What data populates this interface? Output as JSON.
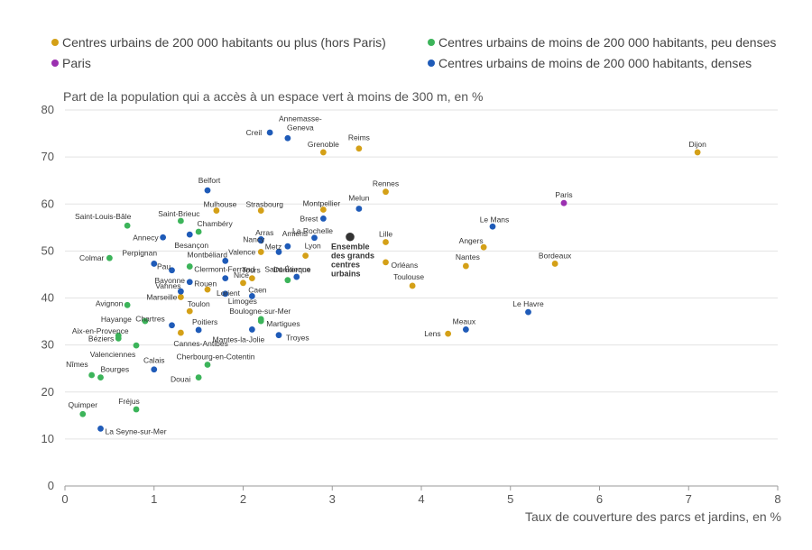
{
  "chart_data": {
    "type": "scatter",
    "ylabel": "Part de la population qui a accès à un espace vert à moins de 300 m, en %",
    "xlabel": "Taux de couverture des parcs et jardins, en %",
    "xlim": [
      0,
      8
    ],
    "ylim": [
      0,
      80
    ],
    "xticks": [
      "0",
      "1",
      "2",
      "3",
      "4",
      "5",
      "6",
      "7",
      "8"
    ],
    "yticks": [
      "0",
      "10",
      "20",
      "30",
      "40",
      "50",
      "60",
      "70",
      "80"
    ],
    "grid": true,
    "legend_position": "top",
    "colors": {
      "gros": "#d4a017",
      "peu_denses": "#3cb45a",
      "paris": "#9b30b0",
      "denses": "#1f5bb8",
      "ensemble": "#333333"
    },
    "series": [
      {
        "key": "gros",
        "name": "Centres urbains de 200 000 habitants ou plus (hors Paris)",
        "points": [
          {
            "label": "Dijon",
            "x": 7.1,
            "y": 71
          },
          {
            "label": "Grenoble",
            "x": 2.9,
            "y": 71
          },
          {
            "label": "Reims",
            "x": 3.3,
            "y": 71.8
          },
          {
            "label": "Rennes",
            "x": 3.6,
            "y": 62.6
          },
          {
            "label": "Strasbourg",
            "x": 2.2,
            "y": 58.6
          },
          {
            "label": "Mulhouse",
            "x": 1.7,
            "y": 58.6
          },
          {
            "label": "Montpellier",
            "x": 2.9,
            "y": 58.8
          },
          {
            "label": "Lille",
            "x": 3.6,
            "y": 51.9
          },
          {
            "label": "Angers",
            "x": 4.7,
            "y": 50.8
          },
          {
            "label": "Valence",
            "x": 2.2,
            "y": 49.8
          },
          {
            "label": "Lyon",
            "x": 2.7,
            "y": 49
          },
          {
            "label": "Orléans",
            "x": 3.6,
            "y": 47.6
          },
          {
            "label": "Nantes",
            "x": 4.5,
            "y": 46.8
          },
          {
            "label": "Bordeaux",
            "x": 5.5,
            "y": 47.3
          },
          {
            "label": "Tours",
            "x": 2.1,
            "y": 44.2
          },
          {
            "label": "Nice",
            "x": 2.0,
            "y": 43.2
          },
          {
            "label": "Toulouse",
            "x": 3.9,
            "y": 42.6
          },
          {
            "label": "Lorient",
            "x": 1.6,
            "y": 41.8
          },
          {
            "label": "Marseille",
            "x": 1.3,
            "y": 40.2
          },
          {
            "label": "Toulon",
            "x": 1.4,
            "y": 37.2
          },
          {
            "label": "Lens",
            "x": 4.3,
            "y": 32.4
          },
          {
            "label": "Cannes-Antibes",
            "x": 1.3,
            "y": 32.6
          }
        ]
      },
      {
        "key": "peu_denses",
        "name": "Centres urbains de moins de 200 000 habitants, peu denses",
        "points": [
          {
            "label": "Saint-Brieuc",
            "x": 1.3,
            "y": 56.4
          },
          {
            "label": "Saint-Louis-Bâle",
            "x": 0.7,
            "y": 55.4
          },
          {
            "label": "Chambéry",
            "x": 1.5,
            "y": 54.1
          },
          {
            "label": "Colmar",
            "x": 0.5,
            "y": 48.5
          },
          {
            "label": "Clermont-Ferrand",
            "x": 1.4,
            "y": 46.7
          },
          {
            "label": "Saint-Étienne",
            "x": 2.5,
            "y": 43.8
          },
          {
            "label": "Avignon",
            "x": 0.7,
            "y": 38.5
          },
          {
            "label": "Hayange",
            "x": 0.9,
            "y": 35.1
          },
          {
            "label": "Boulogne-sur-Mer",
            "x": 2.2,
            "y": 35.5
          },
          {
            "label": "Martigues",
            "x": 2.2,
            "y": 35.1
          },
          {
            "label": "Aix-en-Provence",
            "x": 0.6,
            "y": 32
          },
          {
            "label": "Béziers",
            "x": 0.6,
            "y": 31.4
          },
          {
            "label": "Valenciennes",
            "x": 0.8,
            "y": 29.9
          },
          {
            "label": "Cherbourg-en-Cotentin",
            "x": 1.6,
            "y": 25.8
          },
          {
            "label": "Nîmes",
            "x": 0.3,
            "y": 23.6
          },
          {
            "label": "Bourges",
            "x": 0.4,
            "y": 23.1
          },
          {
            "label": "Douai",
            "x": 1.5,
            "y": 23.1
          },
          {
            "label": "Fréjus",
            "x": 0.8,
            "y": 16.3
          },
          {
            "label": "Quimper",
            "x": 0.2,
            "y": 15.3
          }
        ]
      },
      {
        "key": "paris",
        "name": "Paris",
        "points": [
          {
            "label": "Paris",
            "x": 5.6,
            "y": 60.2
          }
        ]
      },
      {
        "key": "denses",
        "name": "Centres urbains de moins de 200 000 habitants, denses",
        "points": [
          {
            "label": "Creil",
            "x": 2.3,
            "y": 75.2
          },
          {
            "label": "Annemasse-Geneva",
            "x": 2.5,
            "y": 74
          },
          {
            "label": "Belfort",
            "x": 1.6,
            "y": 62.9
          },
          {
            "label": "Melun",
            "x": 3.3,
            "y": 59
          },
          {
            "label": "Brest",
            "x": 2.9,
            "y": 56.9
          },
          {
            "label": "Le Mans",
            "x": 4.8,
            "y": 55.2
          },
          {
            "label": "Besançon",
            "x": 1.4,
            "y": 53.5
          },
          {
            "label": "Annecy",
            "x": 1.1,
            "y": 52.9
          },
          {
            "label": "La Rochelle",
            "x": 2.8,
            "y": 52.8
          },
          {
            "label": "Nancy",
            "x": 2.2,
            "y": 52.5
          },
          {
            "label": "Arras",
            "x": 2.2,
            "y": 52.2
          },
          {
            "label": "Amiens",
            "x": 2.5,
            "y": 51
          },
          {
            "label": "Metz",
            "x": 2.4,
            "y": 49.8
          },
          {
            "label": "Perpignan",
            "x": 1.0,
            "y": 47.3
          },
          {
            "label": "Montbéliard",
            "x": 1.8,
            "y": 47.9
          },
          {
            "label": "Pau",
            "x": 1.2,
            "y": 45.9
          },
          {
            "label": "Dunkerque",
            "x": 2.6,
            "y": 44.5
          },
          {
            "label": "Bayonne",
            "x": 1.4,
            "y": 43.4
          },
          {
            "label": "Rouen",
            "x": 1.8,
            "y": 44.2
          },
          {
            "label": "Vannes",
            "x": 1.3,
            "y": 41.4
          },
          {
            "label": "Caen",
            "x": 2.1,
            "y": 40.4
          },
          {
            "label": "Limoges",
            "x": 1.8,
            "y": 40.9
          },
          {
            "label": "Chartres",
            "x": 1.2,
            "y": 34.2
          },
          {
            "label": "Poitiers",
            "x": 1.5,
            "y": 33.2
          },
          {
            "label": "Mantes-la-Jolie",
            "x": 2.1,
            "y": 33.3
          },
          {
            "label": "Troyes",
            "x": 2.4,
            "y": 32.1
          },
          {
            "label": "Le Havre",
            "x": 5.2,
            "y": 37
          },
          {
            "label": "Meaux",
            "x": 4.5,
            "y": 33.3
          },
          {
            "label": "Calais",
            "x": 1.0,
            "y": 24.8
          },
          {
            "label": "La Seyne-sur-Mer",
            "x": 0.4,
            "y": 12.2
          }
        ]
      },
      {
        "key": "ensemble",
        "name": "Ensemble des grands centres urbains",
        "points": [
          {
            "label": "Ensemble des grands centres urbains",
            "x": 3.2,
            "y": 53
          }
        ]
      }
    ],
    "legend": [
      {
        "key": "gros",
        "label": "Centres urbains de 200 000 habitants ou plus (hors Paris)"
      },
      {
        "key": "peu_denses",
        "label": "Centres urbains de moins de 200 000 habitants, peu denses"
      },
      {
        "key": "paris",
        "label": "Paris"
      },
      {
        "key": "denses",
        "label": "Centres urbains de moins de 200 000 habitants, denses"
      }
    ],
    "ensemble_label_lines": [
      "Ensemble",
      "des grands",
      "centres",
      "urbains"
    ]
  }
}
